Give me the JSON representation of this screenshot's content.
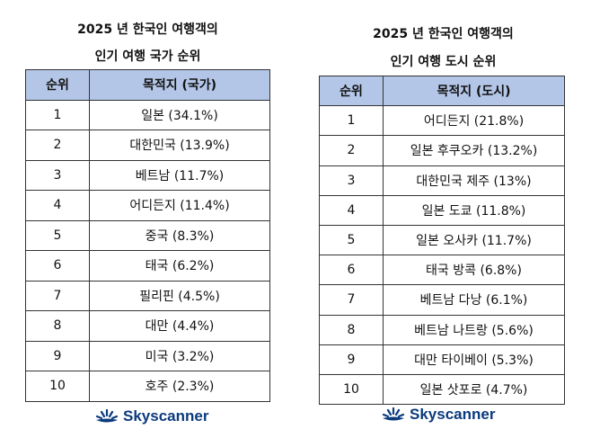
{
  "left": {
    "title_line1": "2025 년 한국인 여행객의",
    "title_line2": "인기 여행 국가 순위",
    "headers": [
      "순위",
      "목적지 (국가)"
    ],
    "rows": [
      [
        "1",
        "일본 (34.1%)"
      ],
      [
        "2",
        "대한민국 (13.9%)"
      ],
      [
        "3",
        "베트남 (11.7%)"
      ],
      [
        "4",
        "어디든지 (11.4%)"
      ],
      [
        "5",
        "중국 (8.3%)"
      ],
      [
        "6",
        "태국 (6.2%)"
      ],
      [
        "7",
        "필리핀 (4.5%)"
      ],
      [
        "8",
        "대만 (4.4%)"
      ],
      [
        "9",
        "미국 (3.2%)"
      ],
      [
        "10",
        "호주 (2.3%)"
      ]
    ],
    "logo": "Skyscanner"
  },
  "right": {
    "title_line1": "2025 년 한국인 여행객의",
    "title_line2": "인기 여행 도시 순위",
    "headers": [
      "순위",
      "목적지 (도시)"
    ],
    "rows": [
      [
        "1",
        "어디든지 (21.8%)"
      ],
      [
        "2",
        "일본 후쿠오카 (13.2%)"
      ],
      [
        "3",
        "대한민국 제주 (13%)"
      ],
      [
        "4",
        "일본 도쿄 (11.8%)"
      ],
      [
        "5",
        "일본 오사카 (11.7%)"
      ],
      [
        "6",
        "태국 방콕 (6.8%)"
      ],
      [
        "7",
        "베트남 다낭 (6.1%)"
      ],
      [
        "8",
        "베트남 나트랑 (5.6%)"
      ],
      [
        "9",
        "대만 타이베이 (5.3%)"
      ],
      [
        "10",
        "일본 삿포로 (4.7%)"
      ]
    ],
    "logo": "Skyscanner"
  },
  "colors": {
    "header_bg": "#b4c6e7",
    "logo": "#0b3a7d"
  }
}
